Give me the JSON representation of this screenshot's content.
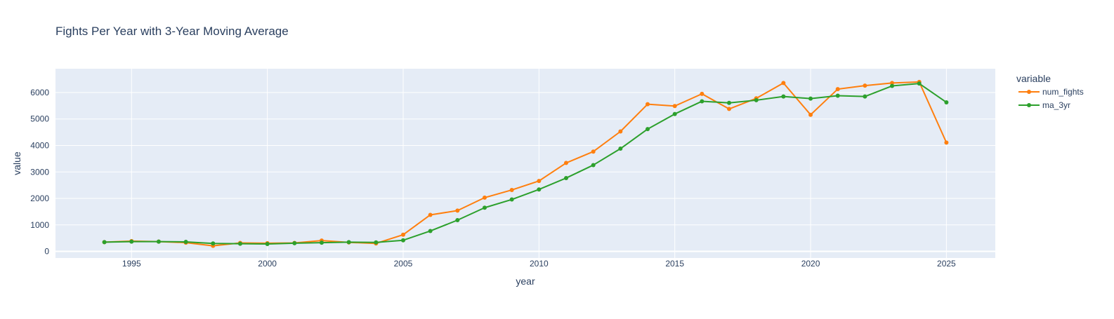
{
  "chart_data": {
    "type": "line",
    "title": "Fights Per Year with 3-Year Moving Average",
    "xlabel": "year",
    "ylabel": "value",
    "xlim": [
      1992.2,
      2026.8
    ],
    "ylim": [
      -250,
      6900
    ],
    "x_ticks": [
      1995,
      2000,
      2005,
      2010,
      2015,
      2020,
      2025
    ],
    "y_ticks": [
      0,
      1000,
      2000,
      3000,
      4000,
      5000,
      6000
    ],
    "grid": true,
    "legend": {
      "title": "variable",
      "position": "right"
    },
    "background_color": "#e5ecf6",
    "x": [
      1994,
      1995,
      1996,
      1997,
      1998,
      1999,
      2000,
      2001,
      2002,
      2003,
      2004,
      2005,
      2006,
      2007,
      2008,
      2009,
      2010,
      2011,
      2012,
      2013,
      2014,
      2015,
      2016,
      2017,
      2018,
      2019,
      2020,
      2021,
      2022,
      2023,
      2024,
      2025
    ],
    "series": [
      {
        "name": "num_fights",
        "color": "#ff7f0e",
        "values": [
          350,
          390,
          370,
          330,
          210,
          320,
          310,
          320,
          410,
          340,
          300,
          630,
          1380,
          1540,
          2030,
          2320,
          2660,
          3340,
          3770,
          4530,
          5560,
          5490,
          5950,
          5380,
          5780,
          6360,
          5160,
          6130,
          6260,
          6360,
          6400,
          4110
        ]
      },
      {
        "name": "ma_3yr",
        "color": "#2ca02c",
        "values": [
          350,
          370,
          370,
          360,
          300,
          290,
          280,
          310,
          330,
          350,
          340,
          420,
          770,
          1180,
          1650,
          1960,
          2340,
          2770,
          3260,
          3880,
          4620,
          5190,
          5670,
          5610,
          5710,
          5850,
          5770,
          5880,
          5850,
          6250,
          6340,
          5630
        ]
      }
    ]
  }
}
